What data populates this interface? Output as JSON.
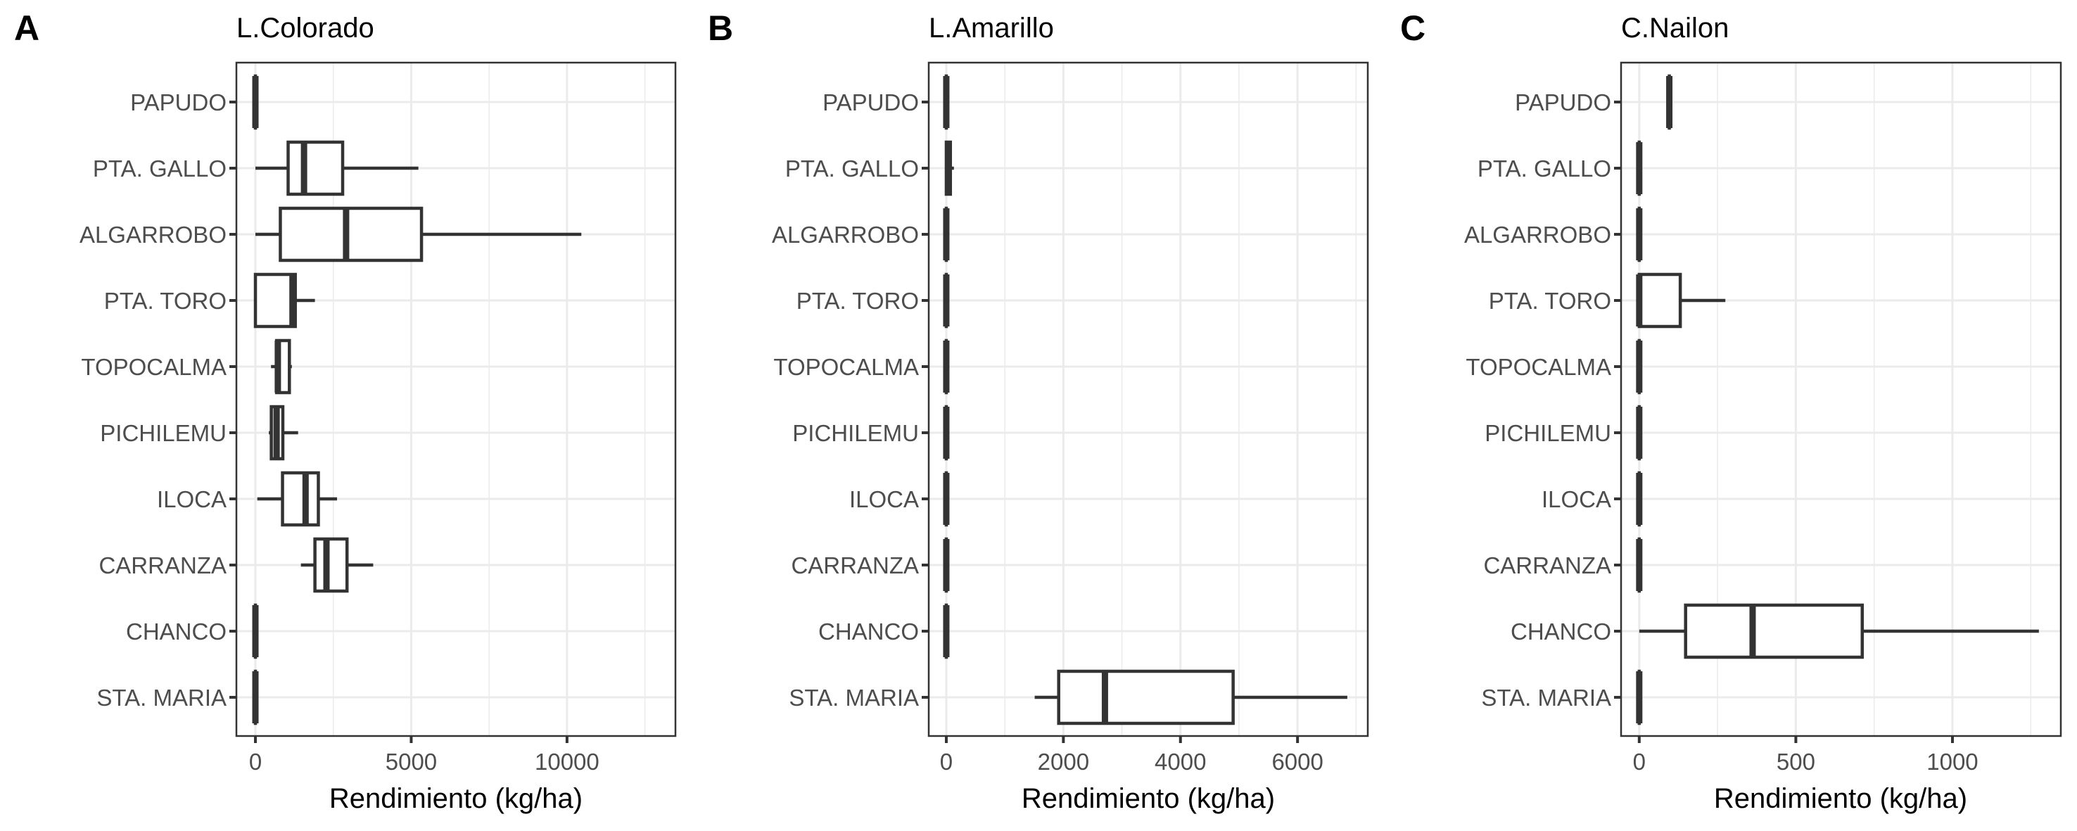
{
  "chart_data": [
    {
      "type": "boxplot",
      "panel_label": "A",
      "title": "L.Colorado",
      "xlabel": "Rendimiento (kg/ha)",
      "ylabel": "",
      "xlim": [
        -610,
        13480
      ],
      "xticks": [
        0,
        5000,
        10000
      ],
      "xtick_labels": [
        "0",
        "5000",
        "10000"
      ],
      "grid": true,
      "categories": [
        "PAPUDO",
        "PTA. GALLO",
        "ALGARROBO",
        "PTA. TORO",
        "TOPOCALMA",
        "PICHILEMU",
        "ILOCA",
        "CARRANZA",
        "CHANCO",
        "STA. MARIA"
      ],
      "boxes": [
        {
          "min": 0,
          "q1": 0,
          "median": 0,
          "q3": 0,
          "max": 0
        },
        {
          "min": 0,
          "q1": 1050,
          "median": 1560,
          "q3": 2800,
          "max": 5230
        },
        {
          "min": 0,
          "q1": 800,
          "median": 2910,
          "q3": 5330,
          "max": 10460
        },
        {
          "min": 0,
          "q1": 0,
          "median": 1190,
          "q3": 1280,
          "max": 1910
        },
        {
          "min": 500,
          "q1": 680,
          "median": 720,
          "q3": 1090,
          "max": 1170
        },
        {
          "min": 430,
          "q1": 510,
          "median": 680,
          "q3": 880,
          "max": 1370
        },
        {
          "min": 60,
          "q1": 870,
          "median": 1610,
          "q3": 2020,
          "max": 2620
        },
        {
          "min": 1460,
          "q1": 1910,
          "median": 2280,
          "q3": 2940,
          "max": 3780
        },
        {
          "min": 0,
          "q1": 0,
          "median": 0,
          "q3": 0,
          "max": 0
        },
        {
          "min": 0,
          "q1": 0,
          "median": 0,
          "q3": 0,
          "max": 0
        }
      ]
    },
    {
      "type": "boxplot",
      "panel_label": "B",
      "title": "L.Amarillo",
      "xlabel": "Rendimiento (kg/ha)",
      "ylabel": "",
      "xlim": [
        -300,
        7200
      ],
      "xticks": [
        0,
        2000,
        4000,
        6000
      ],
      "xtick_labels": [
        "0",
        "2000",
        "4000",
        "6000"
      ],
      "grid": true,
      "categories": [
        "PAPUDO",
        "PTA. GALLO",
        "ALGARROBO",
        "PTA. TORO",
        "TOPOCALMA",
        "PICHILEMU",
        "ILOCA",
        "CARRANZA",
        "CHANCO",
        "STA. MARIA"
      ],
      "boxes": [
        {
          "min": 0,
          "q1": 0,
          "median": 0,
          "q3": 0,
          "max": 0
        },
        {
          "min": 0,
          "q1": 0,
          "median": 40,
          "q3": 70,
          "max": 130
        },
        {
          "min": 0,
          "q1": 0,
          "median": 0,
          "q3": 0,
          "max": 0
        },
        {
          "min": 0,
          "q1": 0,
          "median": 0,
          "q3": 0,
          "max": 0
        },
        {
          "min": 0,
          "q1": 0,
          "median": 0,
          "q3": 0,
          "max": 0
        },
        {
          "min": 0,
          "q1": 0,
          "median": 0,
          "q3": 0,
          "max": 0
        },
        {
          "min": 0,
          "q1": 0,
          "median": 0,
          "q3": 0,
          "max": 0
        },
        {
          "min": 0,
          "q1": 0,
          "median": 0,
          "q3": 0,
          "max": 0
        },
        {
          "min": 0,
          "q1": 0,
          "median": 0,
          "q3": 0,
          "max": 0
        },
        {
          "min": 1510,
          "q1": 1920,
          "median": 2710,
          "q3": 4900,
          "max": 6850
        }
      ]
    },
    {
      "type": "boxplot",
      "panel_label": "C",
      "title": "C.Nailon",
      "xlabel": "Rendimiento (kg/ha)",
      "ylabel": "",
      "xlim": [
        -58,
        1346
      ],
      "xticks": [
        0,
        500,
        1000
      ],
      "xtick_labels": [
        "0",
        "500",
        "1000"
      ],
      "grid": true,
      "categories": [
        "PAPUDO",
        "PTA. GALLO",
        "ALGARROBO",
        "PTA. TORO",
        "TOPOCALMA",
        "PICHILEMU",
        "ILOCA",
        "CARRANZA",
        "CHANCO",
        "STA. MARIA"
      ],
      "boxes": [
        {
          "min": 96,
          "q1": 96,
          "median": 96,
          "q3": 96,
          "max": 96
        },
        {
          "min": 0,
          "q1": 0,
          "median": 0,
          "q3": 0,
          "max": 0
        },
        {
          "min": 0,
          "q1": 0,
          "median": 0,
          "q3": 0,
          "max": 0
        },
        {
          "min": 0,
          "q1": 0,
          "median": 0,
          "q3": 131,
          "max": 275
        },
        {
          "min": 0,
          "q1": 0,
          "median": 0,
          "q3": 0,
          "max": 0
        },
        {
          "min": 0,
          "q1": 0,
          "median": 0,
          "q3": 0,
          "max": 0
        },
        {
          "min": 0,
          "q1": 0,
          "median": 0,
          "q3": 0,
          "max": 0
        },
        {
          "min": 0,
          "q1": 0,
          "median": 0,
          "q3": 0,
          "max": 0
        },
        {
          "min": 0,
          "q1": 148,
          "median": 362,
          "q3": 712,
          "max": 1276
        },
        {
          "min": 0,
          "q1": 0,
          "median": 0,
          "q3": 0,
          "max": 0
        }
      ]
    }
  ]
}
